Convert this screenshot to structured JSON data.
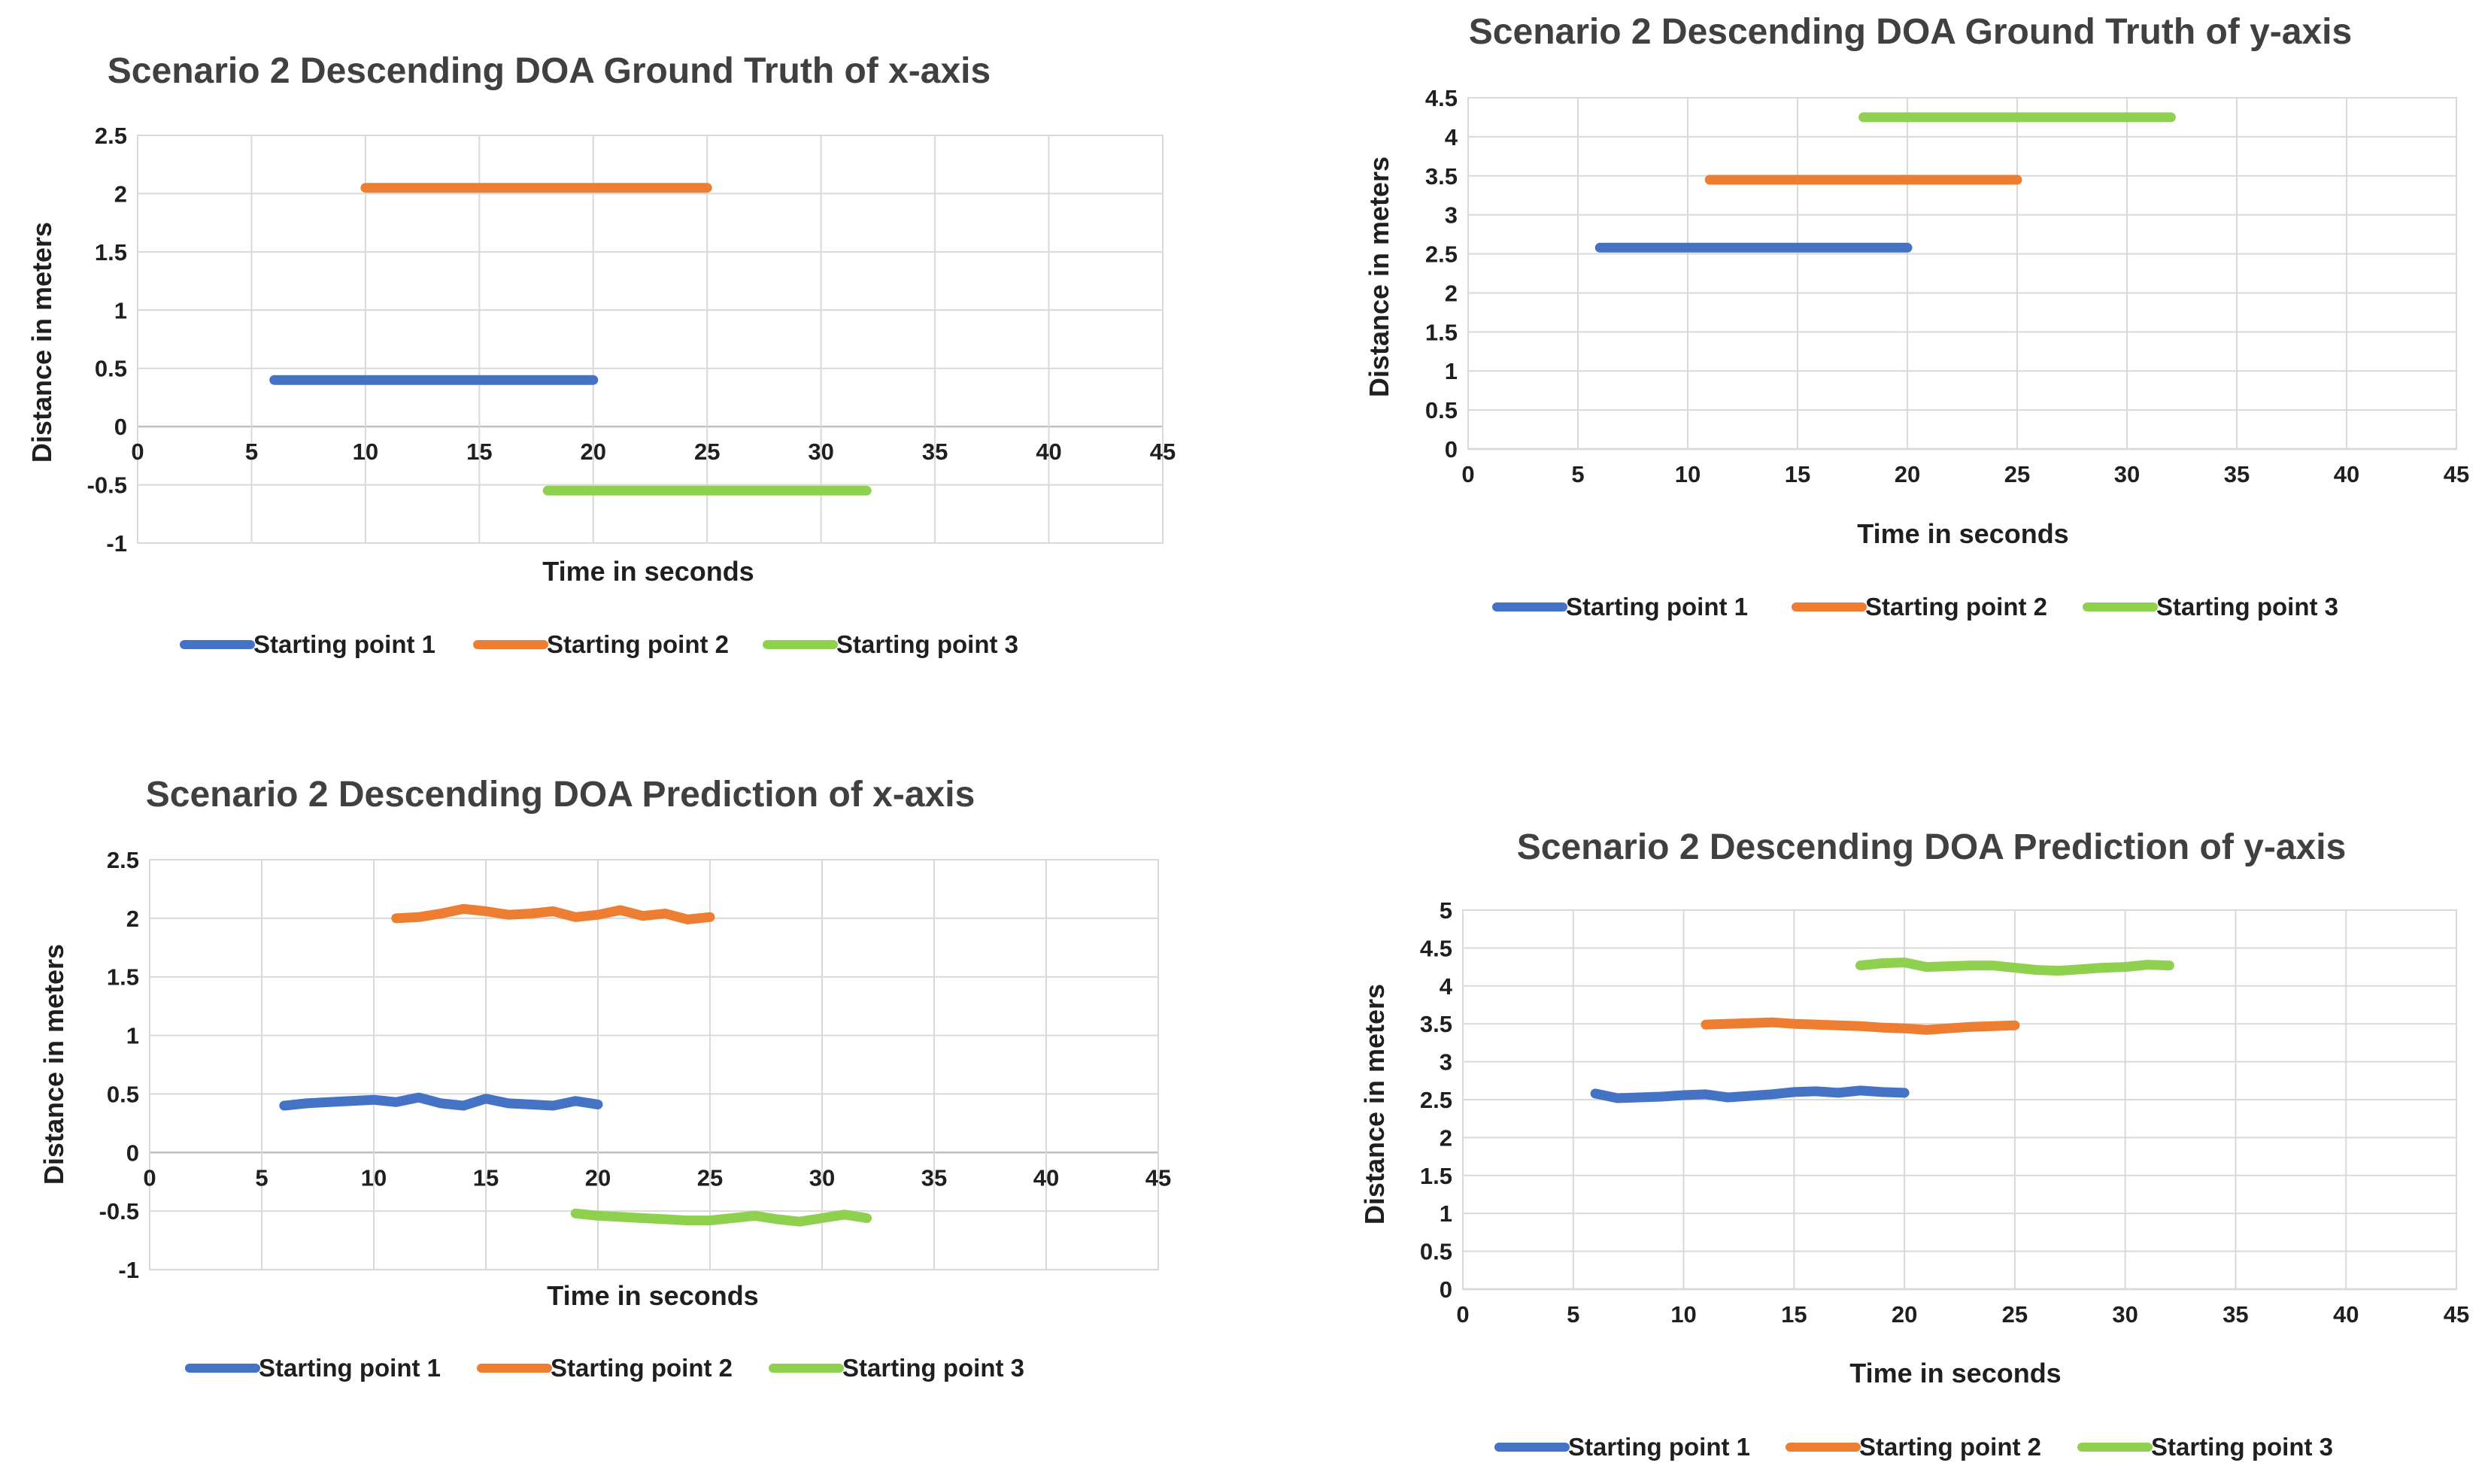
{
  "colors": {
    "starting_point_1": "#4472C4",
    "starting_point_2": "#ED7D31",
    "starting_point_3": "#8FD14F"
  },
  "chart_data": [
    {
      "type": "line",
      "title": "Scenario 2 Descending DOA Ground Truth of x-axis",
      "xlabel": "Time in seconds",
      "ylabel": "Distance in meters",
      "xlim": [
        0,
        45
      ],
      "ylim": [
        -1,
        2.5
      ],
      "xticks": [
        "0",
        "5",
        "10",
        "15",
        "20",
        "25",
        "30",
        "35",
        "40",
        "45"
      ],
      "yticks": [
        "-1",
        "-0.5",
        "0",
        "0.5",
        "1",
        "1.5",
        "2",
        "2.5"
      ],
      "legend": "bottom",
      "series": [
        {
          "name": "Starting point 1",
          "x": [
            6,
            20
          ],
          "y": [
            0.4,
            0.4
          ]
        },
        {
          "name": "Starting point 2",
          "x": [
            10,
            25
          ],
          "y": [
            2.05,
            2.05
          ]
        },
        {
          "name": "Starting point 3",
          "x": [
            18,
            32
          ],
          "y": [
            -0.55,
            -0.55
          ]
        }
      ]
    },
    {
      "type": "line",
      "title": "Scenario 2 Descending DOA Ground Truth of y-axis",
      "xlabel": "Time in seconds",
      "ylabel": "Distance in meters",
      "xlim": [
        0,
        45
      ],
      "ylim": [
        0,
        4.5
      ],
      "xticks": [
        "0",
        "5",
        "10",
        "15",
        "20",
        "25",
        "30",
        "35",
        "40",
        "45"
      ],
      "yticks": [
        "0",
        "0.5",
        "1",
        "1.5",
        "2",
        "2.5",
        "3",
        "3.5",
        "4",
        "4.5"
      ],
      "legend": "bottom",
      "series": [
        {
          "name": "Starting  point 1",
          "x": [
            6,
            20
          ],
          "y": [
            2.58,
            2.58
          ]
        },
        {
          "name": "Starting point 2",
          "x": [
            11,
            25
          ],
          "y": [
            3.45,
            3.45
          ]
        },
        {
          "name": "Starting point 3",
          "x": [
            18,
            32
          ],
          "y": [
            4.25,
            4.25
          ]
        }
      ]
    },
    {
      "type": "line",
      "title": "Scenario 2 Descending DOA Prediction of x-axis",
      "xlabel": "Time in seconds",
      "ylabel": "Distance in meters",
      "xlim": [
        0,
        45
      ],
      "ylim": [
        -1,
        2.5
      ],
      "xticks": [
        "0",
        "5",
        "10",
        "15",
        "20",
        "25",
        "30",
        "35",
        "40",
        "45"
      ],
      "yticks": [
        "-1",
        "-0.5",
        "0",
        "0.5",
        "1",
        "1.5",
        "2",
        "2.5"
      ],
      "legend": "bottom",
      "series": [
        {
          "name": "Starting point 1",
          "x": [
            6,
            7,
            8,
            9,
            10,
            11,
            12,
            13,
            14,
            15,
            16,
            17,
            18,
            19,
            20
          ],
          "y": [
            0.4,
            0.42,
            0.43,
            0.44,
            0.45,
            0.43,
            0.47,
            0.42,
            0.4,
            0.46,
            0.42,
            0.41,
            0.4,
            0.44,
            0.41
          ]
        },
        {
          "name": "Starting point 2",
          "x": [
            11,
            12,
            13,
            14,
            15,
            16,
            17,
            18,
            19,
            20,
            21,
            22,
            23,
            24,
            25
          ],
          "y": [
            2.0,
            2.01,
            2.04,
            2.08,
            2.06,
            2.03,
            2.04,
            2.06,
            2.01,
            2.03,
            2.07,
            2.02,
            2.04,
            1.99,
            2.01
          ]
        },
        {
          "name": "Starting point 3",
          "x": [
            19,
            20,
            21,
            22,
            23,
            24,
            25,
            26,
            27,
            28,
            29,
            30,
            31,
            32
          ],
          "y": [
            -0.52,
            -0.54,
            -0.55,
            -0.56,
            -0.57,
            -0.58,
            -0.58,
            -0.56,
            -0.54,
            -0.57,
            -0.59,
            -0.56,
            -0.53,
            -0.56
          ]
        }
      ]
    },
    {
      "type": "line",
      "title": "Scenario 2 Descending DOA Prediction of y-axis",
      "xlabel": "Time in seconds",
      "ylabel": "Distance in meters",
      "xlim": [
        0,
        45
      ],
      "ylim": [
        0,
        5
      ],
      "xticks": [
        "0",
        "5",
        "10",
        "15",
        "20",
        "25",
        "30",
        "35",
        "40",
        "45"
      ],
      "yticks": [
        "0",
        "0.5",
        "1",
        "1.5",
        "2",
        "2.5",
        "3",
        "3.5",
        "4",
        "4.5",
        "5"
      ],
      "legend": "bottom",
      "series": [
        {
          "name": "Starting point 1",
          "x": [
            6,
            7,
            8,
            9,
            10,
            11,
            12,
            13,
            14,
            15,
            16,
            17,
            18,
            19,
            20
          ],
          "y": [
            2.58,
            2.52,
            2.53,
            2.54,
            2.56,
            2.57,
            2.53,
            2.55,
            2.57,
            2.6,
            2.61,
            2.59,
            2.62,
            2.6,
            2.59
          ]
        },
        {
          "name": "Starting point 2",
          "x": [
            11,
            12,
            13,
            14,
            15,
            16,
            17,
            18,
            19,
            20,
            21,
            22,
            23,
            24,
            25
          ],
          "y": [
            3.49,
            3.5,
            3.51,
            3.52,
            3.5,
            3.49,
            3.48,
            3.47,
            3.45,
            3.44,
            3.42,
            3.44,
            3.46,
            3.47,
            3.48
          ]
        },
        {
          "name": "Starting point 3",
          "x": [
            18,
            19,
            20,
            21,
            22,
            23,
            24,
            25,
            26,
            27,
            28,
            29,
            30,
            31,
            32
          ],
          "y": [
            4.27,
            4.3,
            4.31,
            4.25,
            4.26,
            4.27,
            4.27,
            4.24,
            4.21,
            4.2,
            4.22,
            4.24,
            4.25,
            4.28,
            4.27
          ]
        }
      ]
    }
  ]
}
